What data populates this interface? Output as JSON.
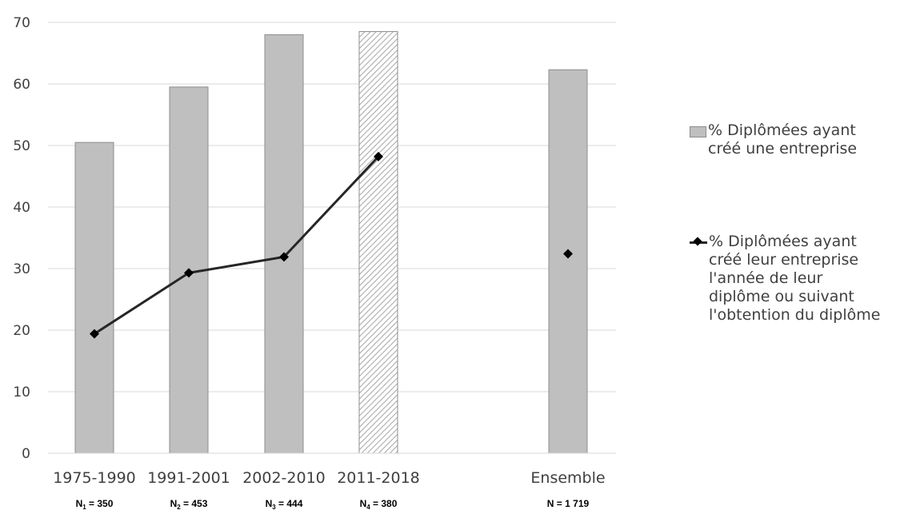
{
  "chart_data": {
    "type": "bar",
    "categories": [
      "1975-1990",
      "1991-2001",
      "2002-2010",
      "2011-2018",
      "Ensemble"
    ],
    "sample_sizes": [
      {
        "base": "N",
        "sub": "1",
        "value": "350"
      },
      {
        "base": "N",
        "sub": "2",
        "value": "453"
      },
      {
        "base": "N",
        "sub": "3",
        "value": "444"
      },
      {
        "base": "N",
        "sub": "4",
        "value": "380"
      },
      {
        "base": "N",
        "sub": "",
        "value": "1 719"
      }
    ],
    "ylim": [
      0,
      70
    ],
    "yticks": [
      0,
      10,
      20,
      30,
      40,
      50,
      60,
      70
    ],
    "grid": true,
    "legend_position": "right",
    "series": [
      {
        "name": "% Diplômées ayant créé une entreprise",
        "kind": "bar",
        "color": "#bfbfbf",
        "hatched_categories": [
          "2011-2018"
        ],
        "values": [
          50.5,
          59.5,
          68.0,
          68.5,
          62.3
        ]
      },
      {
        "name": "% Diplômées ayant créé leur entreprise l'année de leur diplôme ou suivant l'obtention du diplôme",
        "kind": "line",
        "marker": "diamond",
        "color": "#262626",
        "values": [
          19.4,
          29.3,
          31.9,
          48.2,
          32.4
        ],
        "connected_categories": [
          "1975-1990",
          "1991-2001",
          "2002-2010",
          "2011-2018"
        ]
      }
    ]
  },
  "legend": {
    "bar_lines": [
      "% Diplômées ayant",
      "créé une entreprise"
    ],
    "line_lines": [
      "% Diplômées ayant",
      "créé leur entreprise",
      "l'année de leur",
      "diplôme ou suivant",
      "l'obtention du diplôme"
    ]
  }
}
